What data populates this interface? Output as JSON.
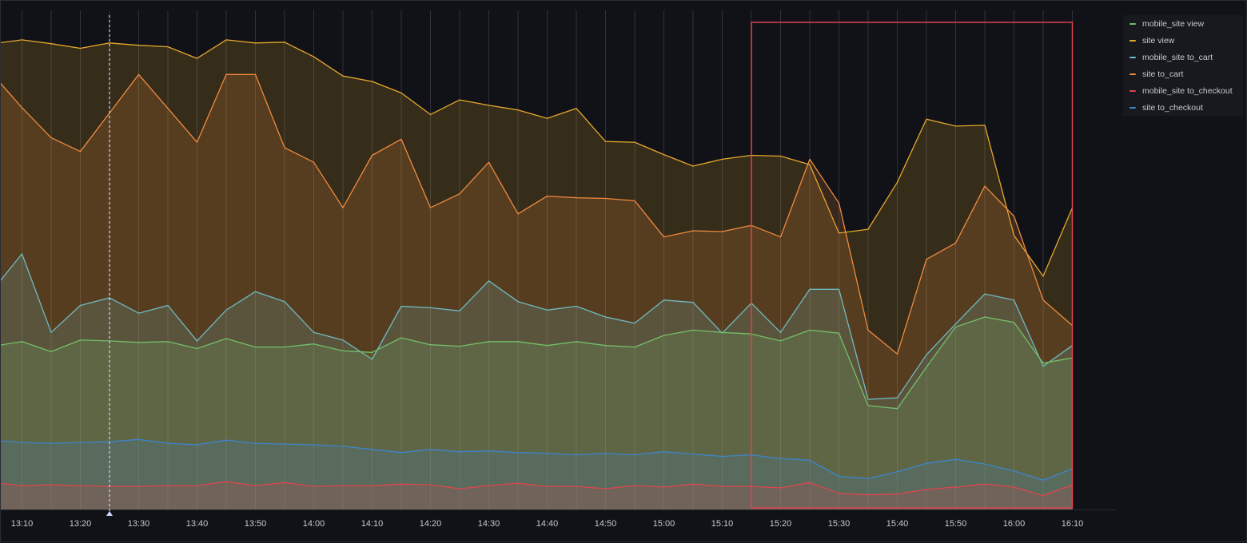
{
  "colors": {
    "background": "#111217",
    "grid": "#3a3c44",
    "selection": "#e0454d",
    "crosshair": "#cfd8ff"
  },
  "chart_data": {
    "type": "area",
    "stacked": true,
    "x_unit": "time",
    "x": [
      "13:05",
      "13:10",
      "13:15",
      "13:20",
      "13:25",
      "13:30",
      "13:35",
      "13:40",
      "13:45",
      "13:50",
      "13:55",
      "14:00",
      "14:05",
      "14:10",
      "14:15",
      "14:20",
      "14:25",
      "14:30",
      "14:35",
      "14:40",
      "14:45",
      "14:50",
      "14:55",
      "15:00",
      "15:05",
      "15:10",
      "15:15",
      "15:20",
      "15:25",
      "15:30",
      "15:35",
      "15:40",
      "15:45",
      "15:50",
      "15:55",
      "16:00",
      "16:05",
      "16:10"
    ],
    "x_tick_labels": [
      "13:10",
      "13:20",
      "13:30",
      "13:40",
      "13:50",
      "14:00",
      "14:10",
      "14:20",
      "14:30",
      "14:40",
      "14:50",
      "15:00",
      "15:10",
      "15:20",
      "15:30",
      "15:40",
      "15:50",
      "16:00",
      "16:10"
    ],
    "grid": true,
    "legend_position": "right",
    "series": [
      {
        "name": "mobile_site view",
        "color": "#73bf69",
        "cumulative": [
          212,
          218,
          205,
          220,
          219,
          217,
          218,
          209,
          222,
          211,
          211,
          215,
          206,
          204,
          223,
          214,
          212,
          218,
          218,
          213,
          218,
          213,
          211,
          226,
          233,
          230,
          228,
          219,
          233,
          229,
          135,
          131,
          185,
          237,
          250,
          243,
          190,
          197
        ]
      },
      {
        "name": "site view",
        "color": "#e5a82c",
        "cumulative": [
          605,
          610,
          605,
          599,
          606,
          603,
          601,
          586,
          610,
          606,
          607,
          588,
          563,
          556,
          541,
          513,
          532,
          525,
          519,
          508,
          521,
          478,
          477,
          461,
          446,
          455,
          460,
          459,
          448,
          359,
          364,
          425,
          507,
          498,
          499,
          356,
          303,
          392
        ]
      },
      {
        "name": "mobile_site to_cart",
        "color": "#6ebac2",
        "cumulative": [
          285,
          332,
          230,
          265,
          275,
          255,
          265,
          219,
          259,
          283,
          270,
          230,
          220,
          195,
          264,
          262,
          258,
          297,
          270,
          259,
          264,
          250,
          242,
          272,
          269,
          229,
          268,
          230,
          286,
          286,
          143,
          145,
          201,
          241,
          280,
          272,
          186,
          213
        ]
      },
      {
        "name": "site to_cart",
        "color": "#f08a3f",
        "cumulative": [
          565,
          522,
          483,
          465,
          515,
          565,
          521,
          477,
          565,
          565,
          470,
          451,
          392,
          460,
          481,
          392,
          410,
          451,
          384,
          407,
          405,
          404,
          401,
          354,
          362,
          361,
          369,
          354,
          455,
          398,
          233,
          202,
          325,
          346,
          420,
          381,
          272,
          239
        ]
      },
      {
        "name": "mobile_site to_checkout",
        "color": "#e0454d",
        "cumulative": [
          35,
          31,
          32,
          31,
          30,
          30,
          31,
          31,
          36,
          31,
          35,
          30,
          31,
          31,
          33,
          32,
          27,
          31,
          34,
          30,
          30,
          27,
          31,
          29,
          33,
          30,
          30,
          28,
          35,
          21,
          19,
          20,
          26,
          29,
          33,
          29,
          18,
          32
        ]
      },
      {
        "name": "site to_checkout",
        "color": "#3e85cc",
        "cumulative": [
          90,
          87,
          86,
          87,
          88,
          91,
          86,
          84,
          90,
          86,
          85,
          84,
          82,
          78,
          74,
          78,
          75,
          76,
          74,
          73,
          71,
          73,
          71,
          75,
          72,
          69,
          71,
          66,
          64,
          43,
          40,
          49,
          60,
          65,
          59,
          50,
          38,
          53
        ]
      }
    ],
    "crosshair_x": "13:25",
    "selection": {
      "from": "15:15",
      "to": "16:10"
    }
  }
}
